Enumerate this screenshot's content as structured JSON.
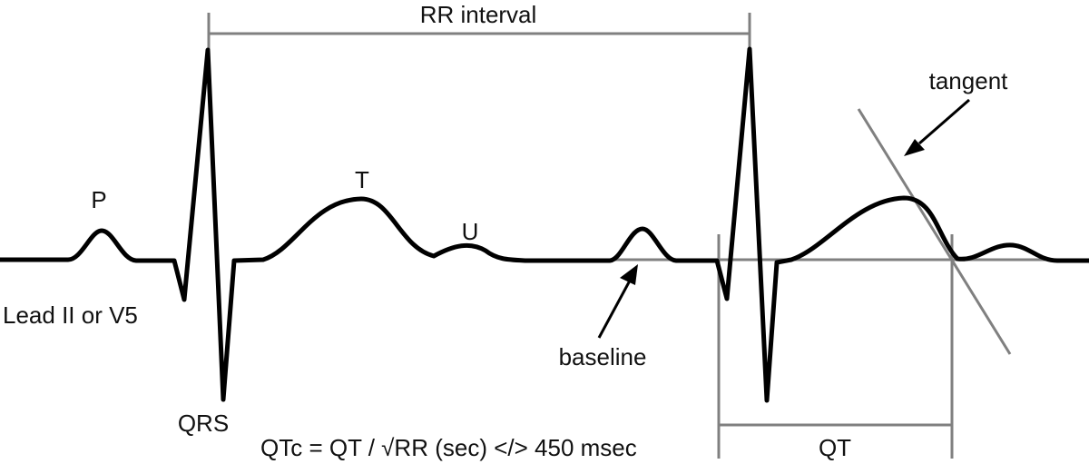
{
  "diagram": {
    "labels": {
      "rr_interval": "RR interval",
      "p": "P",
      "t": "T",
      "u": "U",
      "qrs": "QRS",
      "lead": "Lead II or V5",
      "baseline": "baseline",
      "tangent": "tangent",
      "qt": "QT",
      "formula": "QTc = QT / √RR (sec)  </> 450 msec"
    },
    "colors": {
      "trace": "#000000",
      "guide": "#808080",
      "text": "#111111"
    }
  }
}
